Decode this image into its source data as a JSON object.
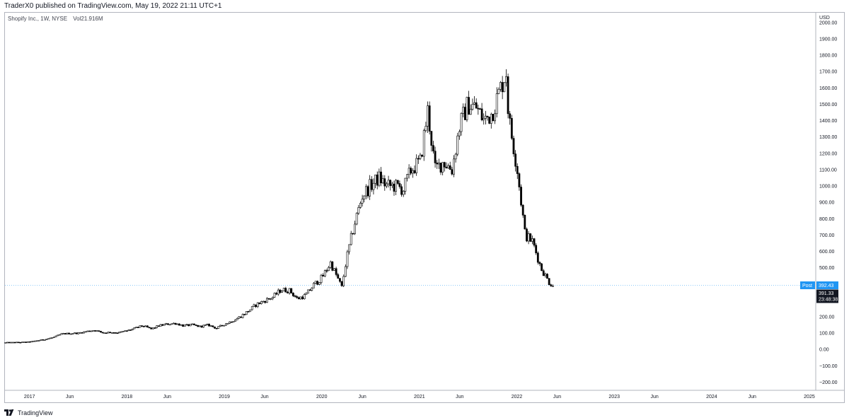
{
  "header": {
    "publish_line": "TraderX0 published on TradingView.com, May 19, 2022 21:11 UTC+1"
  },
  "legend": {
    "symbol_line": "Shopify Inc., 1W, NYSE",
    "volume": "Vol21.916M"
  },
  "footer": {
    "brand": "TradingView",
    "logo_icon": "tradingview-logo-icon"
  },
  "colors": {
    "candle": "#000000",
    "post_tag": "#2196f3",
    "price_tag": "#131722",
    "price_line": "#2196f3",
    "axis_border": "#b2b5be"
  },
  "chart_data": {
    "type": "candlestick",
    "symbol": "Shopify Inc.",
    "interval": "1W",
    "exchange": "NYSE",
    "volume": "Vol21.916M",
    "currency": "USD",
    "y_axis": {
      "unit": "USD",
      "ticks": [
        "2000.00",
        "1900.00",
        "1800.00",
        "1700.00",
        "1600.00",
        "1500.00",
        "1400.00",
        "1300.00",
        "1200.00",
        "1100.00",
        "1000.00",
        "900.00",
        "800.00",
        "700.00",
        "600.00",
        "500.00",
        "400.00",
        "300.00",
        "200.00",
        "100.00",
        "0.00",
        "−100.00",
        "−200.00"
      ],
      "range": [
        -250,
        2060
      ],
      "grid": false
    },
    "x_axis": {
      "ticks": [
        "2017",
        "Jun",
        "2018",
        "Jun",
        "2019",
        "Jun",
        "2020",
        "Jun",
        "2021",
        "Jun",
        "2022",
        "Jun",
        "2023",
        "Jun",
        "2024",
        "Jun",
        "2025"
      ],
      "range": [
        "2016-10-01",
        "2025-01-25"
      ]
    },
    "last_price": {
      "post_label": "Post",
      "post_value": "392.43",
      "value": "391.33",
      "countdown": "23:48:38"
    },
    "series": [
      {
        "type": "weekly_ohlc",
        "points": [
          [
            "2016-10-03",
            42
          ],
          [
            "2016-11-01",
            43
          ],
          [
            "2016-12-01",
            44
          ],
          [
            "2017-01-02",
            46
          ],
          [
            "2017-02-01",
            55
          ],
          [
            "2017-03-01",
            62
          ],
          [
            "2017-04-03",
            75
          ],
          [
            "2017-05-01",
            95
          ],
          [
            "2017-06-01",
            98
          ],
          [
            "2017-07-03",
            100
          ],
          [
            "2017-08-01",
            110
          ],
          [
            "2017-09-01",
            118
          ],
          [
            "2017-10-02",
            102
          ],
          [
            "2017-11-01",
            105
          ],
          [
            "2017-12-01",
            103
          ],
          [
            "2018-01-02",
            115
          ],
          [
            "2018-02-01",
            130
          ],
          [
            "2018-03-01",
            145
          ],
          [
            "2018-04-02",
            125
          ],
          [
            "2018-05-01",
            145
          ],
          [
            "2018-06-01",
            155
          ],
          [
            "2018-07-02",
            160
          ],
          [
            "2018-08-01",
            145
          ],
          [
            "2018-09-03",
            150
          ],
          [
            "2018-10-01",
            140
          ],
          [
            "2018-11-01",
            150
          ],
          [
            "2018-12-03",
            130
          ],
          [
            "2019-01-02",
            155
          ],
          [
            "2019-02-01",
            175
          ],
          [
            "2019-03-01",
            200
          ],
          [
            "2019-04-01",
            235
          ],
          [
            "2019-05-01",
            275
          ],
          [
            "2019-06-03",
            300
          ],
          [
            "2019-07-01",
            320
          ],
          [
            "2019-08-01",
            365
          ],
          [
            "2019-09-03",
            360
          ],
          [
            "2019-10-01",
            310
          ],
          [
            "2019-11-01",
            330
          ],
          [
            "2019-12-02",
            395
          ],
          [
            "2020-01-02",
            440
          ],
          [
            "2020-02-03",
            530
          ],
          [
            "2020-03-02",
            430
          ],
          [
            "2020-03-16",
            380
          ],
          [
            "2020-04-01",
            540
          ],
          [
            "2020-05-01",
            760
          ],
          [
            "2020-06-01",
            940
          ],
          [
            "2020-07-01",
            1000
          ],
          [
            "2020-08-03",
            1050
          ],
          [
            "2020-09-01",
            1000
          ],
          [
            "2020-10-01",
            1000
          ],
          [
            "2020-11-02",
            980
          ],
          [
            "2020-12-01",
            1100
          ],
          [
            "2021-01-04",
            1150
          ],
          [
            "2021-02-01",
            1460
          ],
          [
            "2021-03-01",
            1100
          ],
          [
            "2021-04-01",
            1150
          ],
          [
            "2021-05-03",
            1100
          ],
          [
            "2021-06-01",
            1370
          ],
          [
            "2021-07-01",
            1500
          ],
          [
            "2021-08-02",
            1480
          ],
          [
            "2021-09-01",
            1400
          ],
          [
            "2021-10-01",
            1450
          ],
          [
            "2021-11-01",
            1600
          ],
          [
            "2021-11-22",
            1700
          ],
          [
            "2021-12-01",
            1420
          ],
          [
            "2022-01-03",
            1100
          ],
          [
            "2022-02-01",
            700
          ],
          [
            "2022-03-01",
            660
          ],
          [
            "2022-04-01",
            500
          ],
          [
            "2022-05-02",
            410
          ],
          [
            "2022-05-19",
            391
          ]
        ]
      }
    ]
  }
}
